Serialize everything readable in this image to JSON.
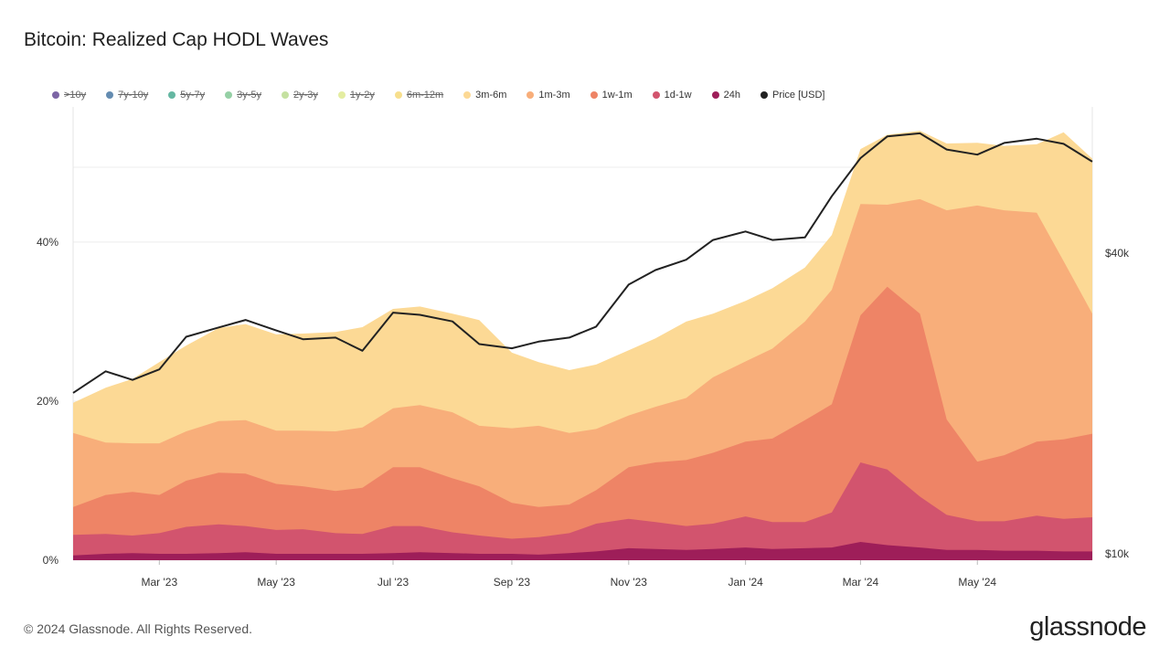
{
  "title": "Bitcoin: Realized Cap HODL Waves",
  "legend": [
    {
      "label": ">10y",
      "color": "#5b3f8f",
      "active": false
    },
    {
      "label": "7y-10y",
      "color": "#3d6f9e",
      "active": false
    },
    {
      "label": "5y-7y",
      "color": "#3fa58b",
      "active": false
    },
    {
      "label": "3y-5y",
      "color": "#7bc48f",
      "active": false
    },
    {
      "label": "2y-3y",
      "color": "#b7d98a",
      "active": false
    },
    {
      "label": "1y-2y",
      "color": "#dde88a",
      "active": false
    },
    {
      "label": "6m-12m",
      "color": "#f5d770",
      "active": false
    },
    {
      "label": "3m-6m",
      "color": "#fcd995",
      "active": true
    },
    {
      "label": "1m-3m",
      "color": "#f8ae7a",
      "active": true
    },
    {
      "label": "1w-1m",
      "color": "#ee8466",
      "active": true
    },
    {
      "label": "1d-1w",
      "color": "#d2546e",
      "active": true
    },
    {
      "label": "24h",
      "color": "#9e1e59",
      "active": true
    },
    {
      "label": "Price [USD]",
      "color": "#222222",
      "active": true
    }
  ],
  "footer": "© 2024 Glassnode. All Rights Reserved.",
  "brand": "glassnode",
  "chart_data": {
    "type": "area",
    "stacked": true,
    "x": [
      "2023-01-15",
      "2023-02-01",
      "2023-02-15",
      "2023-03-01",
      "2023-03-15",
      "2023-04-01",
      "2023-04-15",
      "2023-05-01",
      "2023-05-15",
      "2023-06-01",
      "2023-06-15",
      "2023-07-01",
      "2023-07-15",
      "2023-08-01",
      "2023-08-15",
      "2023-09-01",
      "2023-09-15",
      "2023-10-01",
      "2023-10-15",
      "2023-11-01",
      "2023-11-15",
      "2023-12-01",
      "2023-12-15",
      "2024-01-01",
      "2024-01-15",
      "2024-02-01",
      "2024-02-15",
      "2024-03-01",
      "2024-03-15",
      "2024-04-01",
      "2024-04-15",
      "2024-05-01",
      "2024-05-15",
      "2024-06-01",
      "2024-06-15",
      "2024-06-30"
    ],
    "x_ticks": [
      "Mar '23",
      "May '23",
      "Jul '23",
      "Sep '23",
      "Nov '23",
      "Jan '24",
      "Mar '24",
      "May '24"
    ],
    "y_ticks_left": [
      "0%",
      "20%",
      "40%"
    ],
    "y_ticks_right": [
      "$10k",
      "$40k"
    ],
    "ylim": [
      0,
      57
    ],
    "y_scale_right": "log",
    "series": [
      {
        "name": "24h",
        "color": "#9e1e59",
        "values": [
          0.6,
          0.8,
          0.9,
          0.8,
          0.8,
          0.9,
          1,
          0.8,
          0.8,
          0.8,
          0.8,
          0.9,
          1,
          0.9,
          0.8,
          0.8,
          0.7,
          0.9,
          1.1,
          1.5,
          1.4,
          1.3,
          1.4,
          1.6,
          1.4,
          1.5,
          1.6,
          2.3,
          1.9,
          1.6,
          1.3,
          1.3,
          1.2,
          1.2,
          1.1,
          1.1
        ]
      },
      {
        "name": "1d-1w",
        "color": "#d2546e",
        "values": [
          2.6,
          2.5,
          2.2,
          2.6,
          3.4,
          3.6,
          3.3,
          3,
          3.1,
          2.6,
          2.5,
          3.4,
          3.3,
          2.6,
          2.3,
          1.9,
          2.2,
          2.5,
          3.5,
          3.7,
          3.4,
          3,
          3.2,
          3.9,
          3.4,
          3.3,
          4.4,
          10,
          9.5,
          6.4,
          4.4,
          3.6,
          3.7,
          4.4,
          4.1,
          4.3
        ]
      },
      {
        "name": "1w-1m",
        "color": "#ee8466",
        "values": [
          3.5,
          4.9,
          5.5,
          4.8,
          5.8,
          6.5,
          6.6,
          5.8,
          5.4,
          5.3,
          5.8,
          7.4,
          7.4,
          6.8,
          6.2,
          4.5,
          3.8,
          3.6,
          4.2,
          6.5,
          7.5,
          8.3,
          8.9,
          9.4,
          10.5,
          12.8,
          13.6,
          18.5,
          23,
          23,
          12,
          7.5,
          8.3,
          9.3,
          10,
          10.5
        ]
      },
      {
        "name": "1m-3m",
        "color": "#f8ae7a",
        "values": [
          9.3,
          6.6,
          6.1,
          6.5,
          6.2,
          6.5,
          6.7,
          6.7,
          7,
          7.5,
          7.6,
          7.4,
          7.8,
          8.3,
          7.6,
          9.4,
          10.2,
          9,
          7.7,
          6.5,
          7,
          7.8,
          9.5,
          10.1,
          11.3,
          12.4,
          14.4,
          14,
          10.3,
          14.4,
          26.3,
          32.2,
          30.8,
          28.8,
          22.4,
          15.1
        ]
      },
      {
        "name": "3m-6m",
        "color": "#fcd995",
        "values": [
          3.8,
          6.9,
          8.1,
          10.2,
          10.8,
          11.7,
          12.1,
          12.1,
          12.2,
          12.5,
          12.6,
          12.5,
          12.4,
          12.4,
          13.3,
          9.5,
          8,
          7.9,
          8.1,
          8.2,
          8.6,
          9.6,
          8,
          7.6,
          7.6,
          6.8,
          6.9,
          6.9,
          8.8,
          8.6,
          8.4,
          7.9,
          8.1,
          8.6,
          16.2,
          19.5
        ]
      }
    ],
    "price": {
      "name": "Price [USD]",
      "values": [
        21000,
        23200,
        22300,
        23400,
        27200,
        28400,
        29400,
        28000,
        26900,
        27100,
        25500,
        30400,
        30100,
        29200,
        26300,
        25800,
        26600,
        27100,
        28500,
        34600,
        37000,
        38800,
        42500,
        44200,
        42500,
        43000,
        52000,
        62000,
        68500,
        69500,
        64500,
        63000,
        66500,
        67800,
        66200,
        61000
      ]
    }
  }
}
